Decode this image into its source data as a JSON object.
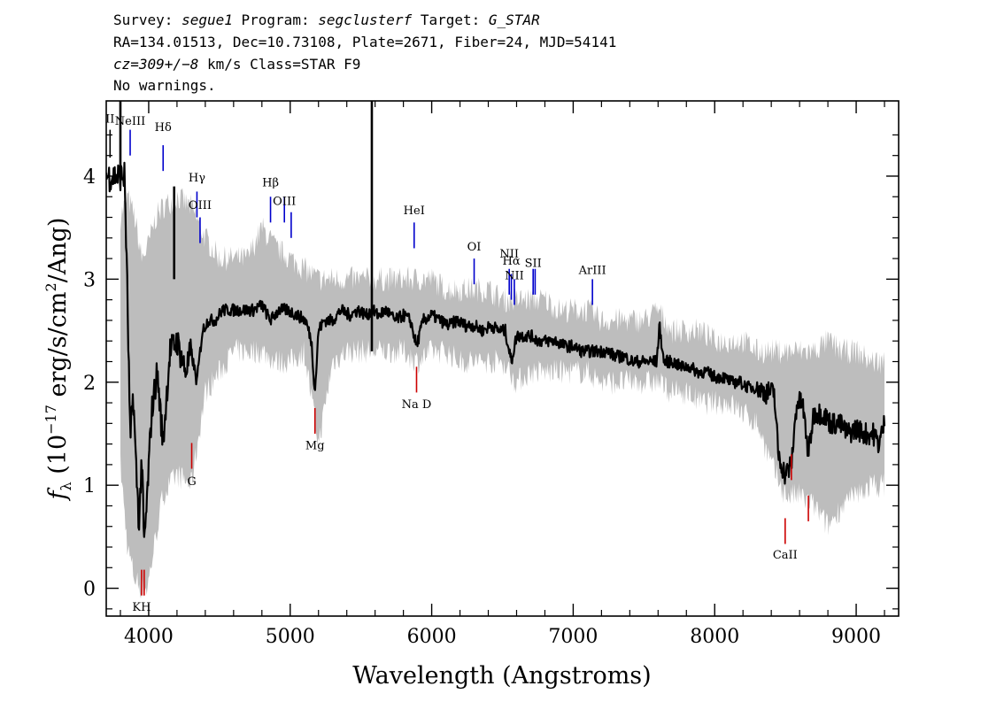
{
  "header": {
    "line1": {
      "survey_label": "Survey:",
      "survey": "segue1",
      "program_label": "Program:",
      "program": "segclusterf",
      "target_label": "Target:",
      "target": "G_STAR"
    },
    "line2": "RA=134.01513, Dec=10.73108, Plate=2671, Fiber=24, MJD=54141",
    "line3": {
      "cz": "cz=309+/−8",
      "rest": " km/s Class=STAR F9"
    },
    "line4": "No warnings."
  },
  "chart_data": {
    "type": "line",
    "xlabel": "Wavelength (Angstroms)",
    "ylabel_prefix": "f",
    "ylabel_sub": "λ",
    "ylabel_rest": "(10",
    "ylabel_exp": "−17",
    "ylabel_units": "erg/s/cm",
    "ylabel_exp2": "2",
    "ylabel_end": "/Ang)",
    "xlim": [
      3700,
      9300
    ],
    "ylim": [
      -0.27,
      4.73
    ],
    "xticks": [
      4000,
      5000,
      6000,
      7000,
      8000,
      9000
    ],
    "xtick_labels": [
      "4000",
      "5000",
      "6000",
      "7000",
      "8000",
      "9000"
    ],
    "yticks": [
      0,
      1,
      2,
      3,
      4
    ],
    "ytick_labels": [
      "0",
      "1",
      "2",
      "3",
      "4"
    ],
    "series": [
      {
        "role": "error",
        "color": "#bdbdbd",
        "x": [
          3800,
          3850,
          3900,
          3950,
          3990,
          4050,
          4100,
          4200,
          4300,
          4400,
          4500,
          4600,
          4700,
          4800,
          4900,
          5000,
          5100,
          5200,
          5300,
          5400,
          5500,
          5600,
          5700,
          5800,
          5900,
          6000,
          6100,
          6200,
          6300,
          6400,
          6500,
          6600,
          6700,
          6800,
          6900,
          7000,
          7100,
          7200,
          7300,
          7400,
          7500,
          7600,
          7700,
          7800,
          7900,
          8000,
          8100,
          8200,
          8300,
          8400,
          8500,
          8600,
          8700,
          8800,
          8900,
          9000,
          9100,
          9200
        ],
        "y_low": [
          1.2,
          0.4,
          0.1,
          0.0,
          0.0,
          0.5,
          0.9,
          1.1,
          1.0,
          1.9,
          2.1,
          2.3,
          2.3,
          2.3,
          2.2,
          2.2,
          2.3,
          1.4,
          2.2,
          2.3,
          2.3,
          2.3,
          2.3,
          2.3,
          2.2,
          2.3,
          2.3,
          2.2,
          2.2,
          2.2,
          2.2,
          2.0,
          2.1,
          2.1,
          2.1,
          2.1,
          2.1,
          2.0,
          2.0,
          2.0,
          2.0,
          2.0,
          1.9,
          1.9,
          1.8,
          1.8,
          1.8,
          1.7,
          1.6,
          1.2,
          0.9,
          0.9,
          0.8,
          0.6,
          0.8,
          0.9,
          1.0,
          1.0
        ],
        "y_high": [
          3.6,
          3.8,
          3.6,
          3.2,
          3.3,
          3.6,
          3.7,
          3.8,
          3.7,
          3.4,
          3.2,
          3.2,
          3.2,
          3.5,
          3.3,
          3.2,
          3.1,
          3.0,
          3.0,
          3.0,
          3.0,
          3.0,
          3.0,
          3.0,
          3.0,
          3.0,
          2.9,
          2.9,
          2.9,
          2.9,
          2.8,
          2.8,
          2.8,
          2.8,
          2.7,
          2.7,
          2.7,
          2.6,
          2.6,
          2.6,
          2.6,
          2.7,
          2.5,
          2.5,
          2.5,
          2.4,
          2.4,
          2.4,
          2.3,
          2.3,
          2.3,
          2.3,
          2.3,
          2.4,
          2.3,
          2.3,
          2.2,
          2.2
        ]
      },
      {
        "role": "flux",
        "color": "#000000",
        "x": [
          3700,
          3770,
          3830,
          3850,
          3870,
          3890,
          3910,
          3933,
          3950,
          3968,
          3990,
          4020,
          4060,
          4101,
          4150,
          4200,
          4260,
          4300,
          4340,
          4380,
          4420,
          4470,
          4520,
          4570,
          4620,
          4680,
          4740,
          4800,
          4861,
          4920,
          4980,
          5050,
          5110,
          5150,
          5175,
          5200,
          5240,
          5300,
          5360,
          5420,
          5480,
          5540,
          5580,
          5620,
          5680,
          5740,
          5800,
          5850,
          5893,
          5940,
          6000,
          6060,
          6120,
          6180,
          6240,
          6300,
          6360,
          6420,
          6480,
          6520,
          6563,
          6600,
          6650,
          6700,
          6760,
          6820,
          6880,
          6940,
          7000,
          7060,
          7120,
          7180,
          7240,
          7300,
          7360,
          7420,
          7480,
          7540,
          7590,
          7610,
          7640,
          7700,
          7760,
          7820,
          7880,
          7940,
          8000,
          8060,
          8120,
          8180,
          8240,
          8300,
          8360,
          8420,
          8450,
          8498,
          8542,
          8580,
          8620,
          8662,
          8700,
          8760,
          8820,
          8880,
          8940,
          9000,
          9060,
          9120,
          9160,
          9200
        ],
        "y": [
          4.0,
          4.0,
          4.0,
          2.8,
          1.4,
          1.9,
          1.2,
          0.6,
          1.3,
          0.4,
          0.9,
          1.7,
          2.1,
          1.4,
          2.3,
          2.4,
          2.1,
          2.3,
          2.0,
          2.5,
          2.6,
          2.6,
          2.7,
          2.7,
          2.7,
          2.7,
          2.7,
          2.75,
          2.6,
          2.7,
          2.7,
          2.65,
          2.6,
          2.4,
          1.9,
          2.5,
          2.6,
          2.6,
          2.7,
          2.65,
          2.7,
          2.65,
          2.7,
          2.65,
          2.7,
          2.6,
          2.65,
          2.6,
          2.35,
          2.6,
          2.65,
          2.6,
          2.55,
          2.6,
          2.55,
          2.55,
          2.5,
          2.55,
          2.5,
          2.5,
          2.2,
          2.45,
          2.45,
          2.45,
          2.4,
          2.4,
          2.4,
          2.35,
          2.35,
          2.3,
          2.3,
          2.3,
          2.3,
          2.25,
          2.25,
          2.2,
          2.2,
          2.2,
          2.2,
          2.55,
          2.2,
          2.2,
          2.15,
          2.15,
          2.1,
          2.1,
          2.05,
          2.05,
          2.0,
          2.0,
          1.95,
          1.95,
          1.9,
          1.9,
          1.3,
          1.1,
          1.2,
          1.8,
          1.8,
          1.3,
          1.7,
          1.7,
          1.6,
          1.6,
          1.5,
          1.55,
          1.5,
          1.5,
          1.4,
          1.6
        ]
      }
    ],
    "spikes": [
      {
        "x": 3800,
        "y0": 3.95,
        "y1": 4.73
      },
      {
        "x": 4180,
        "y0": 3.0,
        "y1": 3.9
      },
      {
        "x": 5577,
        "y0": 2.3,
        "y1": 4.73
      }
    ],
    "annotations": [
      {
        "label": "II",
        "x": 3727,
        "y0": 4.18,
        "y1": 4.45,
        "color": "#000000",
        "ly": 4.52
      },
      {
        "label": "NeIII",
        "x": 3869,
        "y0": 4.2,
        "y1": 4.45,
        "color": "#0000cc",
        "ly": 4.5
      },
      {
        "label": "Hδ",
        "x": 4102,
        "y0": 4.05,
        "y1": 4.3,
        "color": "#0000cc",
        "ly": 4.44
      },
      {
        "label": "Hγ",
        "x": 4341,
        "y0": 3.6,
        "y1": 3.85,
        "color": "#0000cc",
        "ly": 3.95
      },
      {
        "label": "OIII",
        "x": 4363,
        "y0": 3.35,
        "y1": 3.6,
        "color": "#0000cc",
        "ly": 3.68
      },
      {
        "label": "Hβ",
        "x": 4861,
        "y0": 3.55,
        "y1": 3.8,
        "color": "#0000cc",
        "ly": 3.9
      },
      {
        "label": "OIII",
        "x": 4959,
        "y0": 3.55,
        "y1": 3.8,
        "color": "#0000cc",
        "ly": 3.72
      },
      {
        "label": "",
        "x": 5007,
        "y0": 3.4,
        "y1": 3.65,
        "color": "#0000cc",
        "ly": 3.72
      },
      {
        "label": "HeI",
        "x": 5876,
        "y0": 3.3,
        "y1": 3.55,
        "color": "#0000cc",
        "ly": 3.63
      },
      {
        "label": "OI",
        "x": 6300,
        "y0": 2.95,
        "y1": 3.2,
        "color": "#0000cc",
        "ly": 3.28
      },
      {
        "label": "NII",
        "x": 6548,
        "y0": 2.85,
        "y1": 3.1,
        "color": "#0000cc",
        "ly": 3.21
      },
      {
        "label": "Hα",
        "x": 6563,
        "y0": 2.8,
        "y1": 3.05,
        "color": "#0000cc",
        "ly": 3.14
      },
      {
        "label": "NII",
        "x": 6584,
        "y0": 2.75,
        "y1": 3.0,
        "color": "#0000cc",
        "ly": 3.0
      },
      {
        "label": "SII",
        "x": 6717,
        "y0": 2.85,
        "y1": 3.1,
        "color": "#0000cc",
        "ly": 3.12
      },
      {
        "label": "",
        "x": 6731,
        "y0": 2.85,
        "y1": 3.1,
        "color": "#0000cc",
        "ly": 3.12
      },
      {
        "label": "ArIII",
        "x": 7136,
        "y0": 2.75,
        "y1": 3.0,
        "color": "#0000cc",
        "ly": 3.05
      },
      {
        "label": "KH",
        "x": 3950,
        "y0": -0.07,
        "y1": 0.18,
        "color": "#cc0000",
        "ly": -0.22
      },
      {
        "label": "",
        "x": 3968,
        "y0": -0.07,
        "y1": 0.18,
        "color": "#cc0000",
        "ly": -0.22
      },
      {
        "label": "G",
        "x": 4304,
        "y0": 1.16,
        "y1": 1.41,
        "color": "#cc0000",
        "ly": 1.0
      },
      {
        "label": "Mg",
        "x": 5175,
        "y0": 1.5,
        "y1": 1.75,
        "color": "#cc0000",
        "ly": 1.35
      },
      {
        "label": "Na D",
        "x": 5893,
        "y0": 1.9,
        "y1": 2.15,
        "color": "#cc0000",
        "ly": 1.75
      },
      {
        "label": "CaII",
        "x": 8498,
        "y0": 0.43,
        "y1": 0.68,
        "color": "#cc0000",
        "ly": 0.29
      },
      {
        "label": "",
        "x": 8542,
        "y0": 1.05,
        "y1": 1.3,
        "color": "#cc0000",
        "ly": 0.29
      },
      {
        "label": "",
        "x": 8662,
        "y0": 0.65,
        "y1": 0.9,
        "color": "#cc0000",
        "ly": 0.29
      }
    ]
  }
}
